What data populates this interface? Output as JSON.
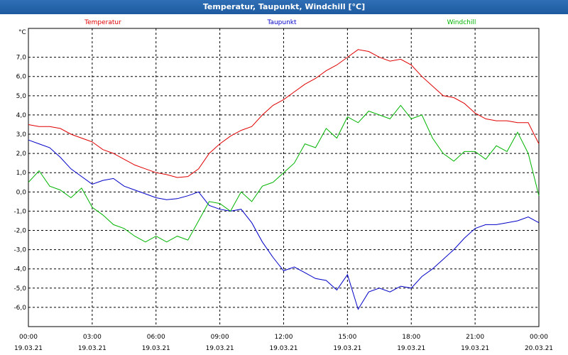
{
  "window": {
    "title": "Temperatur, Taupunkt, Windchill [°C]"
  },
  "chart_data": {
    "type": "line",
    "title": "Temperatur, Taupunkt, Windchill [°C]",
    "ylabel": "°C",
    "ylim": [
      -7,
      8.5
    ],
    "y_ticks": [
      "7,0",
      "6,0",
      "5,0",
      "4,0",
      "3,0",
      "2,0",
      "1,0",
      "0,0",
      "-1,0",
      "-2,0",
      "-3,0",
      "-4,0",
      "-5,0",
      "-6,0"
    ],
    "y_tick_values": [
      7,
      6,
      5,
      4,
      3,
      2,
      1,
      0,
      -1,
      -2,
      -3,
      -4,
      -5,
      -6
    ],
    "x_ticks": [
      {
        "time": "00:00",
        "date": "19.03.21"
      },
      {
        "time": "03:00",
        "date": "19.03.21"
      },
      {
        "time": "06:00",
        "date": "19.03.21"
      },
      {
        "time": "09:00",
        "date": "19.03.21"
      },
      {
        "time": "12:00",
        "date": "19.03.21"
      },
      {
        "time": "15:00",
        "date": "19.03.21"
      },
      {
        "time": "18:00",
        "date": "19.03.21"
      },
      {
        "time": "21:00",
        "date": "19.03.21"
      },
      {
        "time": "00:00",
        "date": "20.03.21"
      }
    ],
    "xlim_hours": [
      0,
      24
    ],
    "grid": true,
    "legend_position": "top",
    "series": [
      {
        "name": "Temperatur",
        "color": "#e00000",
        "x": [
          0,
          0.5,
          1,
          1.5,
          2,
          2.5,
          3,
          3.5,
          4,
          4.5,
          5,
          5.5,
          6,
          6.5,
          7,
          7.5,
          8,
          8.5,
          9,
          9.5,
          10,
          10.5,
          11,
          11.5,
          12,
          12.5,
          13,
          13.5,
          14,
          14.5,
          15,
          15.5,
          16,
          16.5,
          17,
          17.5,
          18,
          18.5,
          19,
          19.5,
          20,
          20.5,
          21,
          21.5,
          22,
          22.5,
          23,
          23.5,
          24
        ],
        "y": [
          3.5,
          3.4,
          3.4,
          3.3,
          3.0,
          2.8,
          2.6,
          2.2,
          2.0,
          1.7,
          1.4,
          1.2,
          1.0,
          0.9,
          0.75,
          0.8,
          1.2,
          2.0,
          2.5,
          2.9,
          3.2,
          3.4,
          4.0,
          4.5,
          4.8,
          5.2,
          5.6,
          5.9,
          6.3,
          6.6,
          7.0,
          7.4,
          7.3,
          7.0,
          6.8,
          6.9,
          6.6,
          6.0,
          5.5,
          5.0,
          4.9,
          4.6,
          4.1,
          3.8,
          3.7,
          3.7,
          3.6,
          3.6,
          2.5
        ]
      },
      {
        "name": "Taupunkt",
        "color": "#0000c8",
        "x": [
          0,
          0.5,
          1,
          1.5,
          2,
          2.5,
          3,
          3.5,
          4,
          4.5,
          5,
          5.5,
          6,
          6.5,
          7,
          7.5,
          8,
          8.5,
          9,
          9.5,
          10,
          10.5,
          11,
          11.5,
          12,
          12.5,
          13,
          13.5,
          14,
          14.5,
          15,
          15.5,
          16,
          16.5,
          17,
          17.5,
          18,
          18.5,
          19,
          19.5,
          20,
          20.5,
          21,
          21.5,
          22,
          22.5,
          23,
          23.5,
          24
        ],
        "y": [
          2.7,
          2.5,
          2.3,
          1.8,
          1.2,
          0.8,
          0.4,
          0.6,
          0.7,
          0.3,
          0.1,
          -0.1,
          -0.3,
          -0.4,
          -0.35,
          -0.2,
          0.0,
          -0.7,
          -0.9,
          -1.0,
          -0.9,
          -1.6,
          -2.6,
          -3.4,
          -4.1,
          -3.9,
          -4.2,
          -4.5,
          -4.6,
          -5.1,
          -4.3,
          -6.1,
          -5.2,
          -5.0,
          -5.2,
          -4.9,
          -5.0,
          -4.4,
          -4.0,
          -3.5,
          -3.0,
          -2.4,
          -1.9,
          -1.7,
          -1.7,
          -1.6,
          -1.5,
          -1.3,
          -1.6
        ]
      },
      {
        "name": "Windchill",
        "color": "#00b400",
        "x": [
          0,
          0.5,
          1,
          1.5,
          2,
          2.5,
          3,
          3.5,
          4,
          4.5,
          5,
          5.5,
          6,
          6.5,
          7,
          7.5,
          8,
          8.5,
          9,
          9.5,
          10,
          10.5,
          11,
          11.5,
          12,
          12.5,
          13,
          13.5,
          14,
          14.5,
          15,
          15.5,
          16,
          16.5,
          17,
          17.5,
          18,
          18.5,
          19,
          19.5,
          20,
          20.5,
          21,
          21.5,
          22,
          22.5,
          23,
          23.5,
          24
        ],
        "y": [
          0.5,
          1.1,
          0.3,
          0.1,
          -0.3,
          0.2,
          -0.8,
          -1.2,
          -1.7,
          -1.9,
          -2.3,
          -2.6,
          -2.3,
          -2.6,
          -2.3,
          -2.5,
          -1.5,
          -0.5,
          -0.6,
          -1.0,
          0.0,
          -0.5,
          0.3,
          0.5,
          1.0,
          1.5,
          2.5,
          2.3,
          3.3,
          2.8,
          3.9,
          3.6,
          4.2,
          4.0,
          3.8,
          4.5,
          3.8,
          4.0,
          2.8,
          2.0,
          1.6,
          2.1,
          2.1,
          1.7,
          2.4,
          2.1,
          3.1,
          2.0,
          -0.2
        ]
      }
    ]
  }
}
